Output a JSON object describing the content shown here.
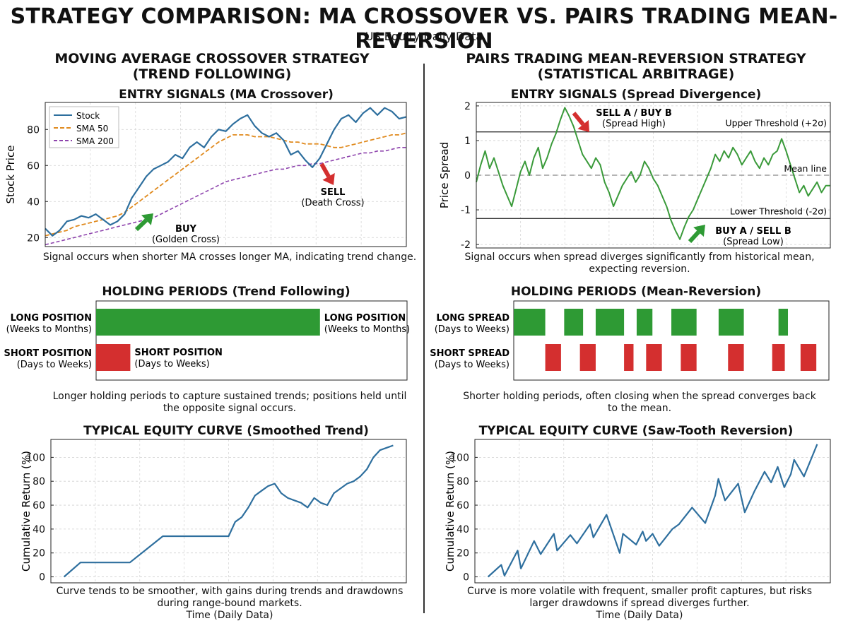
{
  "header": {
    "title": "STRATEGY COMPARISON: MA CROSSOVER VS. PAIRS TRADING MEAN-REVERSION",
    "subtitle": "US Equity Daily Data"
  },
  "left": {
    "title_line1": "MOVING AVERAGE CROSSOVER STRATEGY",
    "title_line2": "(TREND FOLLOWING)",
    "entry": {
      "title": "ENTRY SIGNALS (MA Crossover)",
      "caption": "Signal occurs when shorter MA crosses longer MA, indicating trend change.",
      "buy_label": "BUY",
      "buy_sub": "(Golden Cross)",
      "sell_label": "SELL",
      "sell_sub": "(Death Cross)"
    },
    "holding": {
      "title": "HOLDING PERIODS (Trend Following)",
      "long_label": "LONG POSITION",
      "long_sub": "(Weeks to Months)",
      "short_label": "SHORT POSITION",
      "short_sub": "(Days to Weeks)",
      "caption_line1": "Longer holding periods to capture sustained trends; positions held until",
      "caption_line2": "the opposite signal occurs."
    },
    "equity": {
      "title": "TYPICAL EQUITY CURVE (Smoothed Trend)",
      "caption_line1": "Curve tends to be smoother, with gains during trends and drawdowns",
      "caption_line2": "during range-bound markets.",
      "xlabel": "Time (Daily Data)"
    }
  },
  "right": {
    "title_line1": "PAIRS TRADING MEAN-REVERSION STRATEGY",
    "title_line2": "(STATISTICAL ARBITRAGE)",
    "entry": {
      "title": "ENTRY SIGNALS (Spread Divergence)",
      "caption_line1": "Signal occurs when spread diverges significantly from historical mean,",
      "caption_line2": "expecting reversion.",
      "sell_label": "SELL A / BUY B",
      "sell_sub": "(Spread High)",
      "buy_label": "BUY A / SELL B",
      "buy_sub": "(Spread Low)",
      "upper_label": "Upper Threshold (+2σ)",
      "mean_label": "Mean line",
      "lower_label": "Lower Threshold (-2σ)"
    },
    "holding": {
      "title": "HOLDING PERIODS (Mean-Reversion)",
      "long_label": "LONG SPREAD",
      "long_sub": "(Days to Weeks)",
      "short_label": "SHORT SPREAD",
      "short_sub": "(Days to Weeks)",
      "caption_line1": "Shorter holding periods, often closing when the spread converges back",
      "caption_line2": "to the mean."
    },
    "equity": {
      "title": "TYPICAL EQUITY CURVE (Saw-Tooth Reversion)",
      "caption_line1": "Curve is more volatile with frequent, smaller profit captures, but risks",
      "caption_line2": "larger drawdowns if spread diverges further.",
      "xlabel": "Time (Daily Data)"
    }
  },
  "colors": {
    "stock": "#2e6f9e",
    "sma50": "#e08a1e",
    "sma200": "#8e44ad",
    "spread": "#3a9a3a",
    "long": "#2e9a34",
    "short": "#d42f2f",
    "equity": "#2e6f9e"
  },
  "chart_data": [
    {
      "id": "ma_entry",
      "type": "line",
      "ylabel": "Stock Price",
      "ylim": [
        15,
        95
      ],
      "yticks": [
        20,
        40,
        60,
        80
      ],
      "legend": "top-left",
      "grid": true,
      "x": [
        0,
        2,
        4,
        6,
        8,
        10,
        12,
        14,
        16,
        18,
        20,
        22,
        24,
        26,
        28,
        30,
        32,
        34,
        36,
        38,
        40,
        42,
        44,
        46,
        48,
        50,
        52,
        54,
        56,
        58,
        60,
        62,
        64,
        66,
        68,
        70,
        72,
        74,
        76,
        78,
        80,
        82,
        84,
        86,
        88,
        90,
        92,
        94,
        96,
        98,
        100
      ],
      "series": [
        {
          "name": "Stock",
          "values": [
            25,
            21,
            24,
            29,
            30,
            32,
            31,
            33,
            30,
            27,
            29,
            33,
            42,
            48,
            54,
            58,
            60,
            62,
            66,
            64,
            70,
            73,
            70,
            76,
            80,
            79,
            83,
            86,
            88,
            82,
            78,
            76,
            78,
            74,
            66,
            68,
            63,
            59,
            64,
            72,
            80,
            86,
            88,
            84,
            89,
            92,
            88,
            92,
            90,
            86,
            87
          ]
        },
        {
          "name": "SMA 50",
          "values": [
            21,
            22,
            23,
            24,
            26,
            27,
            28,
            29,
            30,
            31,
            32,
            34,
            37,
            40,
            43,
            46,
            49,
            52,
            55,
            58,
            61,
            64,
            67,
            70,
            73,
            75,
            77,
            77,
            77,
            76,
            76,
            76,
            75,
            74,
            73,
            73,
            72,
            72,
            72,
            71,
            70,
            70,
            71,
            72,
            73,
            74,
            75,
            76,
            77,
            77,
            78
          ]
        },
        {
          "name": "SMA 200",
          "values": [
            16,
            17,
            18,
            19,
            20,
            21,
            22,
            23,
            24,
            25,
            26,
            27,
            28,
            29,
            30,
            31,
            33,
            35,
            37,
            39,
            41,
            43,
            45,
            47,
            49,
            51,
            52,
            53,
            54,
            55,
            56,
            57,
            58,
            58,
            59,
            60,
            60,
            61,
            61,
            62,
            63,
            64,
            65,
            66,
            67,
            67,
            68,
            68,
            69,
            70,
            70
          ]
        }
      ],
      "annotations": [
        {
          "text": "BUY",
          "sub": "(Golden Cross)",
          "x": 20,
          "y": 30
        },
        {
          "text": "SELL",
          "sub": "(Death Cross)",
          "x": 77,
          "y": 59
        }
      ]
    },
    {
      "id": "pairs_entry",
      "type": "line",
      "ylabel": "Price Spread",
      "ylim": [
        -2.1,
        2.1
      ],
      "yticks": [
        -2,
        -1,
        0,
        1,
        2
      ],
      "upper_threshold": 1.25,
      "lower_threshold": -1.25,
      "mean": 0,
      "grid": true,
      "x": [
        0,
        1,
        2,
        3,
        4,
        5,
        6,
        7,
        8,
        9,
        10,
        11,
        12,
        13,
        14,
        15,
        16,
        17,
        18,
        19,
        20,
        21,
        22,
        23,
        24,
        25,
        26,
        27,
        28,
        29,
        30,
        31,
        32,
        33,
        34,
        35,
        36,
        37,
        38,
        39,
        40,
        41,
        42,
        43,
        44,
        45,
        46,
        47,
        48,
        49,
        50,
        51,
        52,
        53,
        54,
        55,
        56,
        57,
        58,
        59,
        60,
        61,
        62,
        63,
        64,
        65,
        66,
        67,
        68,
        69,
        70,
        71,
        72,
        73,
        74,
        75,
        76,
        77,
        78,
        79,
        80
      ],
      "series": [
        {
          "name": "Spread",
          "values": [
            -0.2,
            0.3,
            0.7,
            0.2,
            0.5,
            0.1,
            -0.3,
            -0.6,
            -0.9,
            -0.4,
            0.1,
            0.4,
            0.0,
            0.5,
            0.8,
            0.2,
            0.5,
            0.9,
            1.2,
            1.6,
            1.95,
            1.7,
            1.4,
            1.0,
            0.6,
            0.4,
            0.2,
            0.5,
            0.3,
            -0.2,
            -0.5,
            -0.9,
            -0.6,
            -0.3,
            -0.1,
            0.1,
            -0.2,
            0.0,
            0.4,
            0.2,
            -0.1,
            -0.3,
            -0.6,
            -0.9,
            -1.3,
            -1.6,
            -1.85,
            -1.5,
            -1.2,
            -1.0,
            -0.7,
            -0.4,
            -0.1,
            0.2,
            0.6,
            0.4,
            0.7,
            0.5,
            0.8,
            0.6,
            0.3,
            0.5,
            0.7,
            0.4,
            0.2,
            0.5,
            0.3,
            0.6,
            0.7,
            1.05,
            0.7,
            0.3,
            -0.1,
            -0.5,
            -0.3,
            -0.6,
            -0.4,
            -0.2,
            -0.5,
            -0.3,
            -0.3
          ]
        }
      ],
      "annotations": [
        {
          "text": "SELL A / BUY B",
          "sub": "(Spread High)",
          "x": 20,
          "y": 1.95
        },
        {
          "text": "BUY A / SELL B",
          "sub": "(Spread Low)",
          "x": 46,
          "y": -1.85
        }
      ]
    },
    {
      "id": "ma_holding",
      "type": "bar",
      "orientation": "horizontal",
      "categories": [
        "LONG POSITION",
        "SHORT POSITION"
      ],
      "xlim": [
        0,
        100
      ],
      "series": [
        {
          "name": "LONG POSITION",
          "segments": [
            [
              0,
              72
            ]
          ]
        },
        {
          "name": "SHORT POSITION",
          "segments": [
            [
              0,
              11
            ]
          ]
        }
      ]
    },
    {
      "id": "pairs_holding",
      "type": "bar",
      "orientation": "horizontal",
      "categories": [
        "LONG SPREAD",
        "SHORT SPREAD"
      ],
      "xlim": [
        0,
        100
      ],
      "series": [
        {
          "name": "LONG SPREAD",
          "segments": [
            [
              0,
              10
            ],
            [
              16,
              22
            ],
            [
              26,
              35
            ],
            [
              39,
              44
            ],
            [
              50,
              58
            ],
            [
              65,
              73
            ],
            [
              84,
              87
            ]
          ]
        },
        {
          "name": "SHORT SPREAD",
          "segments": [
            [
              10,
              15
            ],
            [
              21,
              26
            ],
            [
              35,
              38
            ],
            [
              42,
              47
            ],
            [
              53,
              58
            ],
            [
              68,
              73
            ],
            [
              82,
              86
            ],
            [
              91,
              96
            ]
          ]
        }
      ]
    },
    {
      "id": "ma_equity",
      "type": "line",
      "ylabel": "Cumulative Return (%)",
      "xlabel": "Time (Daily Data)",
      "ylim": [
        -5,
        115
      ],
      "yticks": [
        0,
        20,
        40,
        60,
        80,
        100
      ],
      "grid": true,
      "x": [
        0,
        5,
        10,
        15,
        20,
        25,
        30,
        35,
        40,
        45,
        50,
        52,
        54,
        56,
        58,
        60,
        62,
        64,
        66,
        68,
        70,
        72,
        74,
        76,
        78,
        80,
        82,
        84,
        86,
        88,
        90,
        92,
        94,
        96,
        98,
        100
      ],
      "series": [
        {
          "name": "Equity",
          "values": [
            0,
            12,
            12,
            12,
            12,
            23,
            34,
            34,
            34,
            34,
            34,
            46,
            50,
            58,
            68,
            72,
            76,
            78,
            70,
            66,
            64,
            62,
            58,
            66,
            62,
            60,
            70,
            74,
            78,
            80,
            84,
            90,
            100,
            106,
            108,
            110
          ]
        }
      ]
    },
    {
      "id": "pairs_equity",
      "type": "line",
      "ylabel": "Cumulative Return (%)",
      "xlabel": "Time (Daily Data)",
      "ylim": [
        -5,
        115
      ],
      "yticks": [
        0,
        20,
        40,
        60,
        80,
        100
      ],
      "grid": true,
      "x": [
        0,
        4,
        5,
        9,
        10,
        14,
        16,
        20,
        21,
        25,
        27,
        31,
        32,
        36,
        40,
        41,
        45,
        47,
        48,
        50,
        52,
        56,
        58,
        62,
        66,
        69,
        70,
        72,
        76,
        78,
        81,
        84,
        86,
        88,
        90,
        92,
        93,
        96,
        100
      ],
      "series": [
        {
          "name": "Equity",
          "values": [
            0,
            10,
            1,
            22,
            7,
            30,
            19,
            36,
            22,
            35,
            28,
            44,
            33,
            52,
            20,
            36,
            27,
            38,
            30,
            36,
            26,
            40,
            44,
            58,
            45,
            68,
            82,
            64,
            78,
            54,
            72,
            88,
            79,
            92,
            75,
            86,
            98,
            84,
            111
          ]
        }
      ]
    }
  ]
}
